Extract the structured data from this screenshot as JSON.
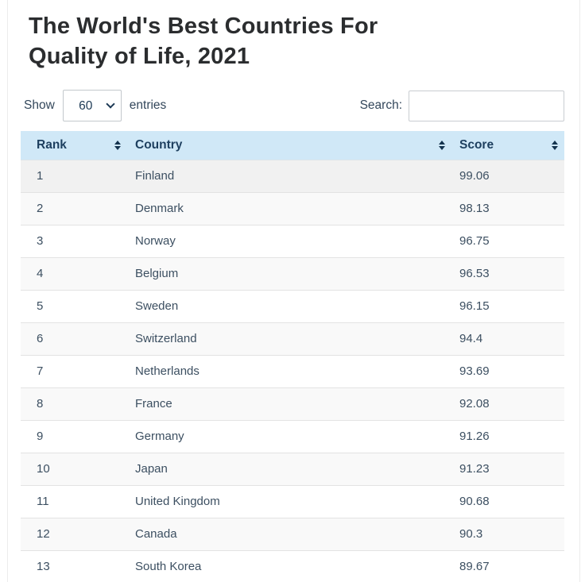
{
  "page": {
    "title_line1": "The World's Best Countries For",
    "title_line2": "Quality of Life, 2021"
  },
  "controls": {
    "show_label": "Show",
    "entries_value": "60",
    "entries_label": "entries",
    "search_label": "Search:",
    "search_value": ""
  },
  "table": {
    "columns": [
      {
        "key": "rank",
        "label": "Rank"
      },
      {
        "key": "country",
        "label": "Country"
      },
      {
        "key": "score",
        "label": "Score"
      }
    ],
    "rows": [
      {
        "rank": "1",
        "country": "Finland",
        "score": "99.06"
      },
      {
        "rank": "2",
        "country": "Denmark",
        "score": "98.13"
      },
      {
        "rank": "3",
        "country": "Norway",
        "score": "96.75"
      },
      {
        "rank": "4",
        "country": "Belgium",
        "score": "96.53"
      },
      {
        "rank": "5",
        "country": "Sweden",
        "score": "96.15"
      },
      {
        "rank": "6",
        "country": "Switzerland",
        "score": "94.4"
      },
      {
        "rank": "7",
        "country": "Netherlands",
        "score": "93.69"
      },
      {
        "rank": "8",
        "country": "France",
        "score": "92.08"
      },
      {
        "rank": "9",
        "country": "Germany",
        "score": "91.26"
      },
      {
        "rank": "10",
        "country": "Japan",
        "score": "91.23"
      },
      {
        "rank": "11",
        "country": "United Kingdom",
        "score": "90.68"
      },
      {
        "rank": "12",
        "country": "Canada",
        "score": "90.3"
      },
      {
        "rank": "13",
        "country": "South Korea",
        "score": "89.67"
      }
    ]
  },
  "colors": {
    "header_bg": "#d0e8f7",
    "header_text": "#1d3f5f",
    "cell_text": "#3c4f61",
    "stripe_row": "#f9f9f9",
    "first_row_highlight": "#f1f1f1",
    "sort_icon": "#14334e"
  }
}
